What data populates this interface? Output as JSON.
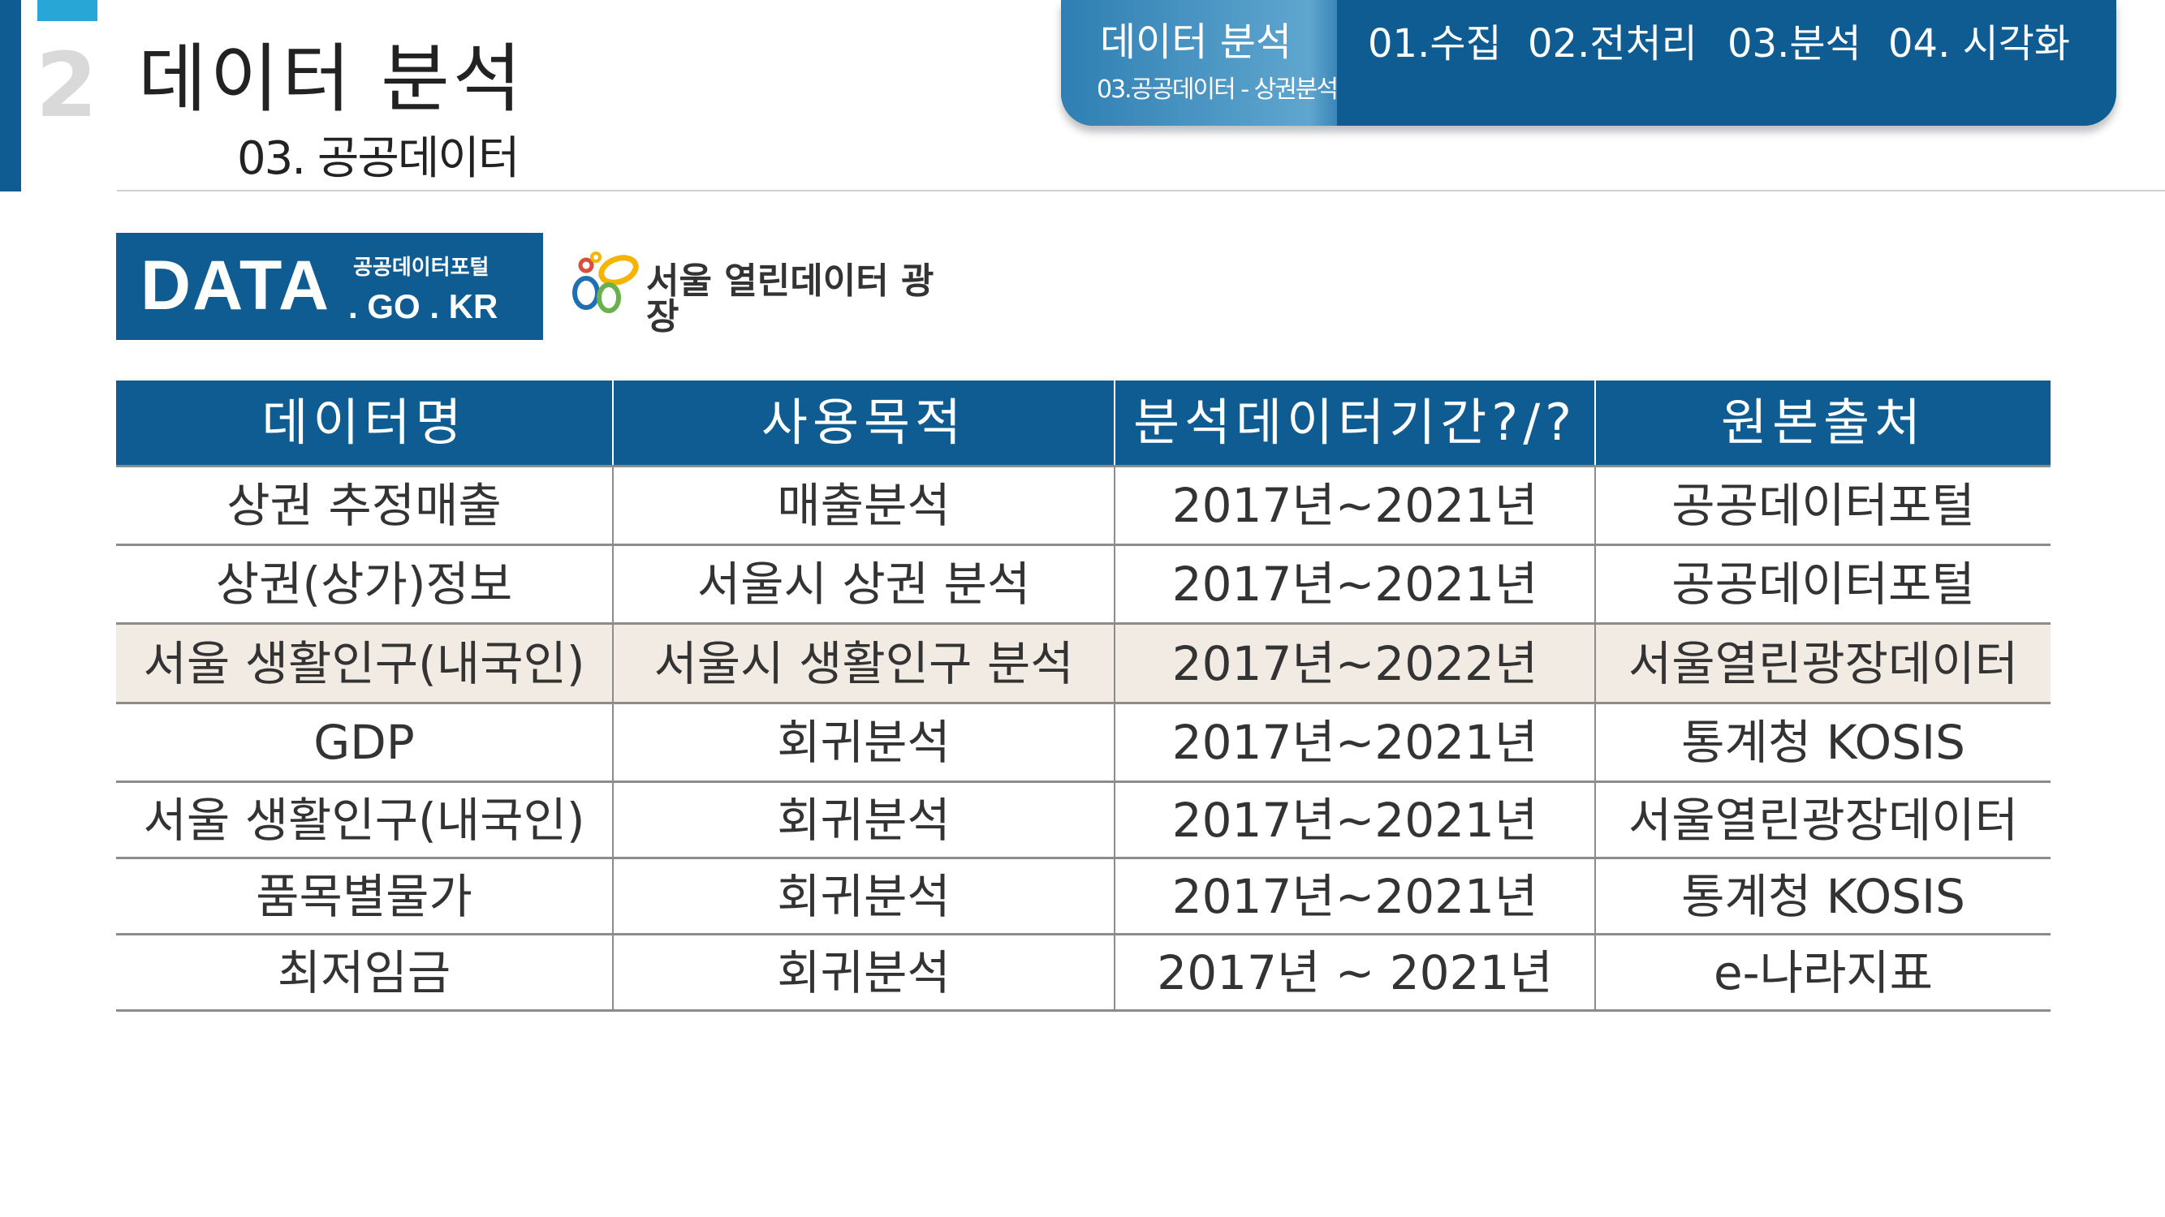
{
  "header": {
    "section_number": "2",
    "title": "데이터 분석",
    "subtitle": "03. 공공데이터"
  },
  "nav": {
    "active_title": "데이터 분석",
    "active_sub": "03.공공데이터 - 상권분석",
    "items": [
      "01.수집",
      "02.전처리",
      "03.분석",
      "04. 시각화"
    ]
  },
  "logos": {
    "data_portal": {
      "big": "DATA",
      "small": "공공데이터포털",
      "domain": ". GO . KR"
    },
    "seoul": {
      "text": "서울 열린데이터 광장"
    },
    "colors": {
      "brand_blue": "#0e5c91",
      "seoul_yellow": "#f4b400",
      "seoul_blue": "#1f6fb5",
      "seoul_red": "#d94f3d",
      "seoul_green": "#6ab04c"
    }
  },
  "table": {
    "headers": [
      "데이터명",
      "사용목적",
      "분석데이터기간?/?",
      "원본출처"
    ],
    "rows": [
      {
        "cells": [
          "상권 추정매출",
          "매출분석",
          "2017년~2021년",
          "공공데이터포털"
        ],
        "highlight": false
      },
      {
        "cells": [
          "상권(상가)정보",
          "서울시 상권 분석",
          "2017년~2021년",
          "공공데이터포털"
        ],
        "highlight": false
      },
      {
        "cells": [
          "서울 생활인구(내국인)",
          "서울시 생활인구 분석",
          "2017년~2022년",
          "서울열린광장데이터"
        ],
        "highlight": true
      },
      {
        "cells": [
          "GDP",
          "회귀분석",
          "2017년~2021년",
          "통계청 KOSIS"
        ],
        "highlight": false
      },
      {
        "cells": [
          "서울 생활인구(내국인)",
          "회귀분석",
          "2017년~2021년",
          "서울열린광장데이터"
        ],
        "highlight": false
      },
      {
        "cells": [
          "품목별물가",
          "회귀분석",
          "2017년~2021년",
          "통계청 KOSIS"
        ],
        "highlight": false
      },
      {
        "cells": [
          "최저임금",
          "회귀분석",
          "2017년 ~ 2021년",
          "e-나라지표"
        ],
        "highlight": false
      }
    ],
    "highlight_color": "#f2ebe4"
  }
}
